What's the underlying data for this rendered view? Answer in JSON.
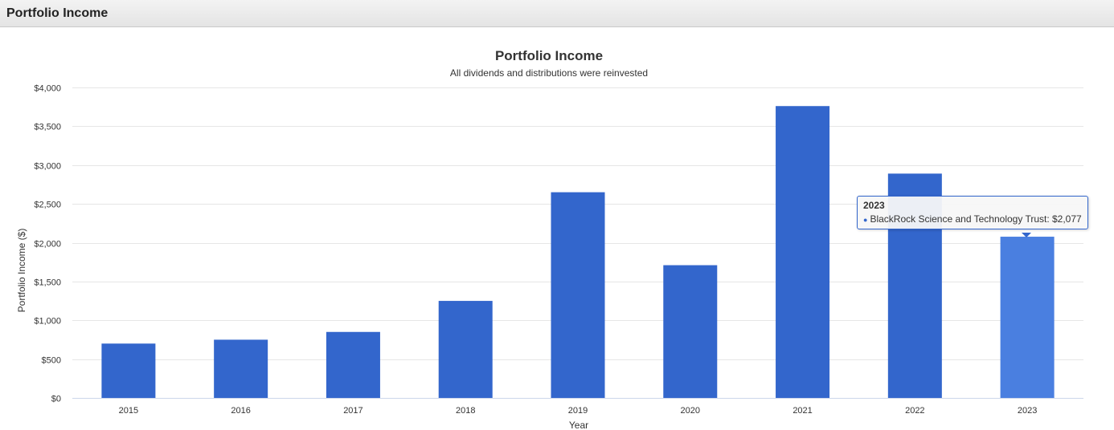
{
  "panel": {
    "title": "Portfolio Income"
  },
  "chart_data": {
    "type": "bar",
    "title": "Portfolio Income",
    "subtitle": "All dividends and distributions were reinvested",
    "xlabel": "Year",
    "ylabel": "Portfolio Income ($)",
    "ylim": [
      0,
      4000
    ],
    "yticks": [
      0,
      500,
      1000,
      1500,
      2000,
      2500,
      3000,
      3500,
      4000
    ],
    "ytick_labels": [
      "$0",
      "$500",
      "$1,000",
      "$1,500",
      "$2,000",
      "$2,500",
      "$3,000",
      "$3,500",
      "$4,000"
    ],
    "grid": true,
    "categories": [
      "2015",
      "2016",
      "2017",
      "2018",
      "2019",
      "2020",
      "2021",
      "2022",
      "2023"
    ],
    "series": [
      {
        "name": "BlackRock Science and Technology Trust",
        "values": [
          700,
          750,
          850,
          1250,
          2650,
          1710,
          3760,
          2890,
          2077
        ],
        "color": "#3366cc"
      }
    ],
    "highlight_color": "#4a7fe0",
    "hovered_index": 8
  },
  "tooltip": {
    "title": "2023",
    "dot": "●",
    "text": "BlackRock Science and Technology Trust: $2,077"
  }
}
